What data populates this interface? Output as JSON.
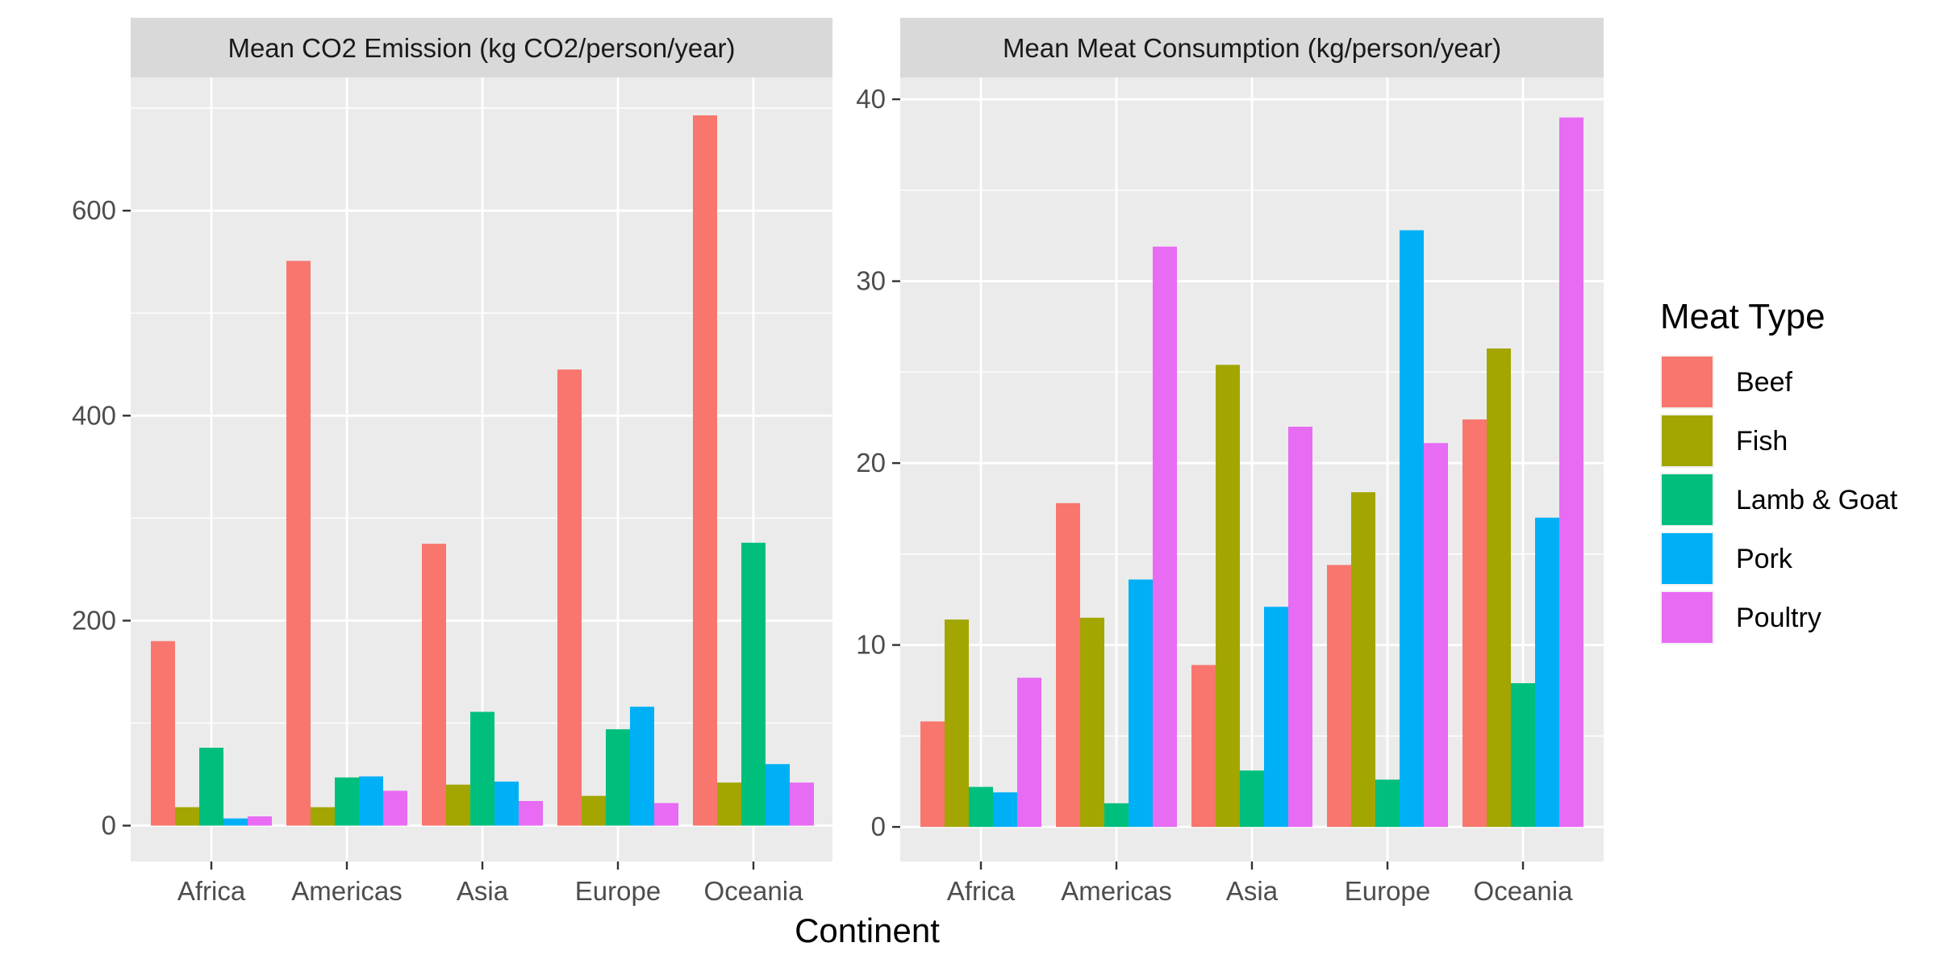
{
  "chart_data": {
    "type": "bar",
    "xlabel": "Continent",
    "categories": [
      "Africa",
      "Americas",
      "Asia",
      "Europe",
      "Oceania"
    ],
    "legend": {
      "title": "Meat Type",
      "position": "right",
      "entries": [
        "Beef",
        "Fish",
        "Lamb & Goat",
        "Pork",
        "Poultry"
      ]
    },
    "colors": {
      "Beef": "#F8766D",
      "Fish": "#A3A500",
      "Lamb & Goat": "#00BF7D",
      "Pork": "#00B0F6",
      "Poultry": "#E76BF3"
    },
    "grid": true,
    "panels": [
      {
        "title": "Mean CO2 Emission (kg CO2/person/year)",
        "ylim": [
          -35,
          730
        ],
        "yticks": [
          0,
          200,
          400,
          600
        ],
        "series": [
          {
            "name": "Beef",
            "values": [
              180,
              551,
              275,
              445,
              693
            ]
          },
          {
            "name": "Fish",
            "values": [
              18,
              18,
              40,
              29,
              42
            ]
          },
          {
            "name": "Lamb & Goat",
            "values": [
              76,
              47,
              111,
              94,
              276
            ]
          },
          {
            "name": "Pork",
            "values": [
              7,
              48,
              43,
              116,
              60
            ]
          },
          {
            "name": "Poultry",
            "values": [
              9,
              34,
              24,
              22,
              42
            ]
          }
        ]
      },
      {
        "title": "Mean Meat Consumption (kg/person/year)",
        "ylim": [
          -1.9,
          41.2
        ],
        "yticks": [
          0,
          10,
          20,
          30,
          40
        ],
        "series": [
          {
            "name": "Beef",
            "values": [
              5.8,
              17.8,
              8.9,
              14.4,
              22.4
            ]
          },
          {
            "name": "Fish",
            "values": [
              11.4,
              11.5,
              25.4,
              18.4,
              26.3
            ]
          },
          {
            "name": "Lamb & Goat",
            "values": [
              2.2,
              1.3,
              3.1,
              2.6,
              7.9
            ]
          },
          {
            "name": "Pork",
            "values": [
              1.9,
              13.6,
              12.1,
              32.8,
              17.0
            ]
          },
          {
            "name": "Poultry",
            "values": [
              8.2,
              31.9,
              22.0,
              21.1,
              39.0
            ]
          }
        ]
      }
    ]
  }
}
